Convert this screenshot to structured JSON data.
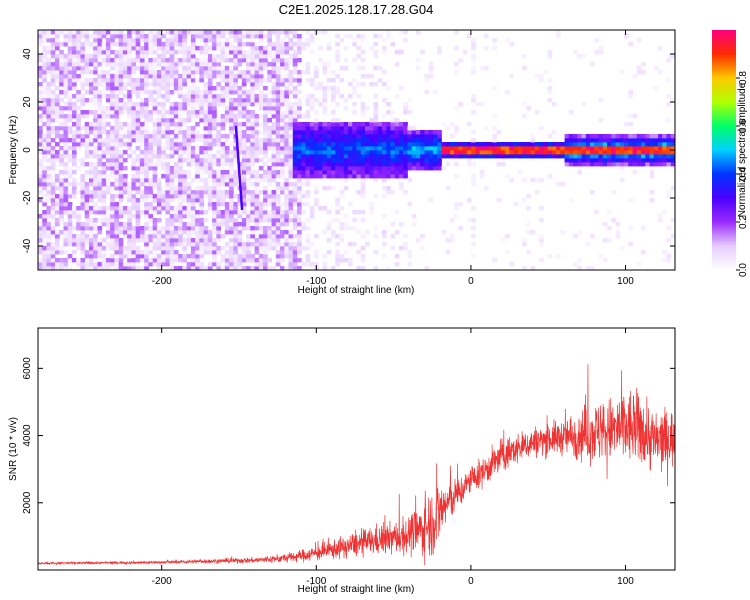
{
  "figure": {
    "title": "C2E1.2025.128.17.28.G04"
  },
  "chart_data": [
    {
      "type": "heatmap",
      "title": "C2E1.2025.128.17.28.G04",
      "xlabel": "Height of straight line (km)",
      "ylabel": "Frequency (Hz)",
      "xlim": [
        -280,
        132
      ],
      "ylim": [
        -50,
        50
      ],
      "x_ticks": [
        -200,
        -100,
        0,
        100
      ],
      "y_ticks": [
        -40,
        -20,
        0,
        20,
        40
      ],
      "colorbar": {
        "label": "Normalized spectral amplitude",
        "range": [
          0,
          1
        ],
        "ticks": [
          "0.0",
          "0.2",
          "0.4",
          "0.6",
          "0.8"
        ],
        "tick_values": [
          0.0,
          0.2,
          0.4,
          0.6,
          0.8
        ],
        "colormap": [
          "#ffffff",
          "#e6ccff",
          "#9a2bff",
          "#4a00ff",
          "#0033ff",
          "#00d0ff",
          "#00ff66",
          "#b0ff00",
          "#ffc800",
          "#ff2a00",
          "#ff0080"
        ]
      },
      "features": {
        "uniform_noise_region_km": [
          -280,
          -110
        ],
        "sparse_noise_region_km": [
          -110,
          -40
        ],
        "carrier_band_start_km": -115,
        "carrier_frequency_hz": 0,
        "strong_carrier_start_km": -20,
        "vertical_streak": {
          "x_km": [
            -152,
            -148
          ],
          "y_hz": [
            10,
            -25
          ]
        }
      },
      "grid": false,
      "legend": "none"
    },
    {
      "type": "line",
      "xlabel": "Height of straight line (km)",
      "ylabel": "SNR (10 * v/v)",
      "xlim": [
        -280,
        132
      ],
      "ylim": [
        0,
        7200
      ],
      "x_ticks": [
        -200,
        -100,
        0,
        100
      ],
      "y_ticks": [
        2000,
        4000,
        6000
      ],
      "color": "#ee3333",
      "series": [
        {
          "x": [
            -280,
            -250,
            -220,
            -200,
            -180,
            -160,
            -140,
            -120,
            -100,
            -90,
            -80,
            -70,
            -60,
            -50,
            -40,
            -30,
            -25,
            -20,
            -15,
            -10,
            -5,
            0,
            5,
            10,
            15,
            20,
            30,
            40,
            50,
            60,
            70,
            80,
            90,
            100,
            110,
            120,
            132
          ],
          "y": [
            200,
            210,
            220,
            230,
            250,
            270,
            290,
            350,
            500,
            600,
            700,
            800,
            900,
            950,
            1050,
            1250,
            1450,
            1750,
            2000,
            2200,
            2400,
            2700,
            2800,
            3000,
            3200,
            3400,
            3600,
            3800,
            3900,
            3950,
            4050,
            4100,
            4150,
            4250,
            4200,
            3800,
            3950
          ],
          "noise": [
            50,
            50,
            60,
            60,
            80,
            100,
            130,
            200,
            350,
            450,
            500,
            600,
            700,
            750,
            900,
            1300,
            1600,
            1500,
            1000,
            800,
            700,
            600,
            650,
            700,
            750,
            800,
            700,
            700,
            750,
            800,
            1200,
            1400,
            1500,
            1800,
            1700,
            1500,
            1300
          ]
        }
      ],
      "grid": false,
      "legend": "none"
    }
  ]
}
